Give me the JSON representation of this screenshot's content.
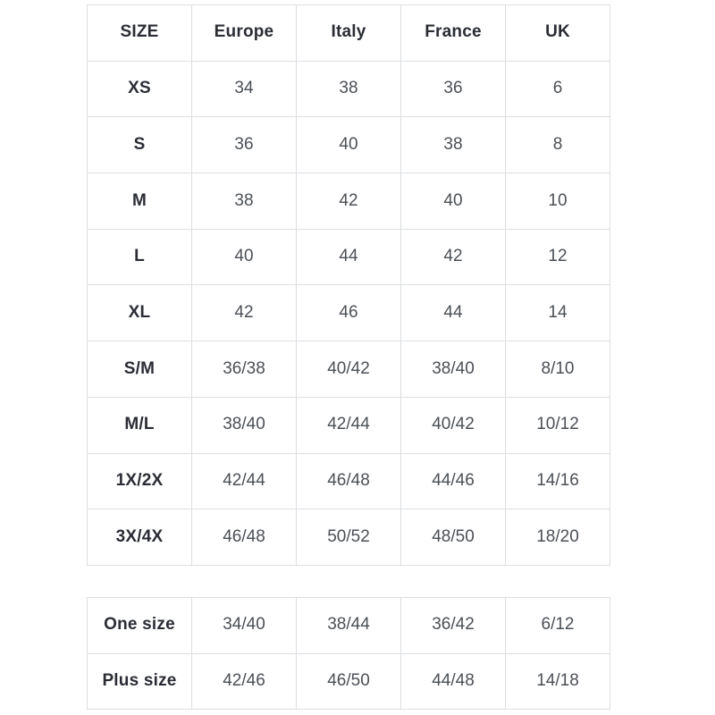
{
  "colors": {
    "background": "#ffffff",
    "border": "#dddfe2",
    "header_text": "#2b2d35",
    "value_text": "#4b5056"
  },
  "main_table": {
    "headers": {
      "size": "SIZE",
      "europe": "Europe",
      "italy": "Italy",
      "france": "France",
      "uk": "UK"
    },
    "rows": [
      {
        "label": "XS",
        "europe": "34",
        "italy": "38",
        "france": "36",
        "uk": "6"
      },
      {
        "label": "S",
        "europe": "36",
        "italy": "40",
        "france": "38",
        "uk": "8"
      },
      {
        "label": "M",
        "europe": "38",
        "italy": "42",
        "france": "40",
        "uk": "10"
      },
      {
        "label": "L",
        "europe": "40",
        "italy": "44",
        "france": "42",
        "uk": "12"
      },
      {
        "label": "XL",
        "europe": "42",
        "italy": "46",
        "france": "44",
        "uk": "14"
      },
      {
        "label": "S/M",
        "europe": "36/38",
        "italy": "40/42",
        "france": "38/40",
        "uk": "8/10"
      },
      {
        "label": "M/L",
        "europe": "38/40",
        "italy": "42/44",
        "france": "40/42",
        "uk": "10/12"
      },
      {
        "label": "1X/2X",
        "europe": "42/44",
        "italy": "46/48",
        "france": "44/46",
        "uk": "14/16"
      },
      {
        "label": "3X/4X",
        "europe": "46/48",
        "italy": "50/52",
        "france": "48/50",
        "uk": "18/20"
      }
    ]
  },
  "secondary_table": {
    "rows": [
      {
        "label": "One size",
        "europe": "34/40",
        "italy": "38/44",
        "france": "36/42",
        "uk": "6/12"
      },
      {
        "label": "Plus size",
        "europe": "42/46",
        "italy": "46/50",
        "france": "44/48",
        "uk": "14/18"
      }
    ]
  }
}
